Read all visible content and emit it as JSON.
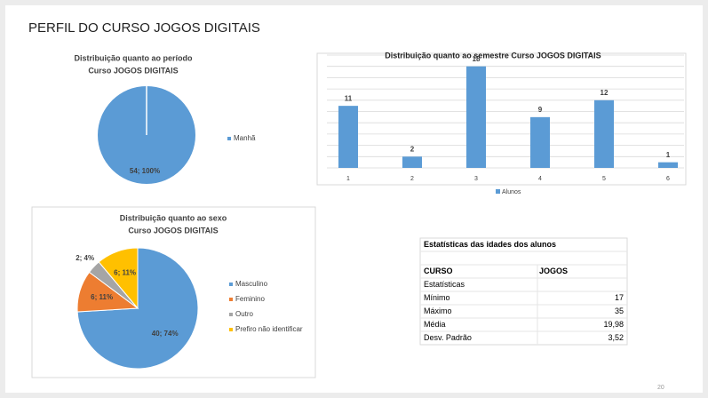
{
  "title": "PERFIL DO CURSO JOGOS DIGITAIS",
  "page_number": "20",
  "chart_data": [
    {
      "type": "pie",
      "title": [
        "Distribuição quanto ao período",
        "Curso JOGOS DIGITAIS"
      ],
      "categories": [
        "Manhã"
      ],
      "values": [
        54
      ],
      "value_labels": [
        "54; 100%"
      ],
      "colors": [
        "#5b9bd5"
      ],
      "legend": "right"
    },
    {
      "type": "bar",
      "title": "Distribuição quanto ao semestre Curso JOGOS DIGITAIS",
      "categories": [
        "1",
        "2",
        "3",
        "4",
        "5",
        "6"
      ],
      "series": [
        {
          "name": "Alunos",
          "color": "#5b9bd5",
          "values": [
            11,
            2,
            18,
            9,
            12,
            1
          ]
        }
      ],
      "ylim": [
        0,
        20
      ],
      "yticks": [
        0,
        2,
        4,
        6,
        8,
        10,
        12,
        14,
        16,
        18,
        20
      ],
      "grid": true,
      "legend": "bottom"
    },
    {
      "type": "pie",
      "title": [
        "Distribuição quanto ao sexo",
        "Curso JOGOS DIGITAIS"
      ],
      "categories": [
        "Masculino",
        "Feminino",
        "Outro",
        "Prefiro não identificar"
      ],
      "values": [
        40,
        6,
        2,
        6
      ],
      "value_labels": [
        "40; 74%",
        "6; 11%",
        "2; 4%",
        "6; 11%"
      ],
      "colors": [
        "#5b9bd5",
        "#ed7d31",
        "#a5a5a5",
        "#ffc000"
      ],
      "legend": "right"
    }
  ],
  "table": {
    "title": "Estatísticas das idades dos alunos",
    "header": [
      "CURSO",
      "JOGOS"
    ],
    "rows": [
      [
        "Estatísticas"
      ],
      [
        "Mínimo",
        "17"
      ],
      [
        "Máximo",
        "35"
      ],
      [
        "Média",
        "19,98"
      ],
      [
        "Desv. Padrão",
        "3,52"
      ]
    ]
  }
}
